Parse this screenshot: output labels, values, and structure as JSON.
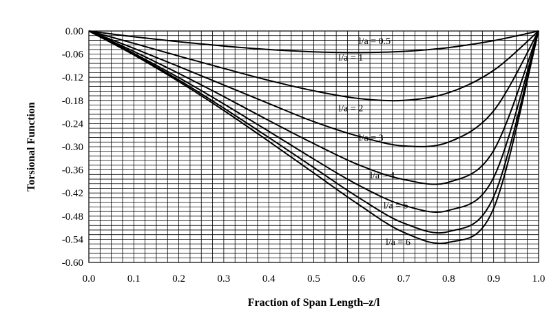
{
  "chart_data": {
    "type": "line",
    "title": "",
    "xlabel": "Fraction of Span Length–z/l",
    "ylabel": "Torsional Function",
    "xlim": [
      0.0,
      1.0
    ],
    "ylim": [
      -0.6,
      0.0
    ],
    "x_ticks": [
      "0.0",
      "0.1",
      "0.2",
      "0.3",
      "0.4",
      "0.5",
      "0.6",
      "0.7",
      "0.8",
      "0.9",
      "1.0"
    ],
    "y_ticks": [
      "0.00",
      "-0.06",
      "-0.12",
      "-0.18",
      "-0.24",
      "-0.30",
      "-0.36",
      "-0.42",
      "-0.48",
      "-0.54",
      "-0.60"
    ],
    "grid": true,
    "minor_grid_divisions": {
      "x": 4,
      "y": 5
    },
    "x": [
      0.0,
      0.1,
      0.2,
      0.3,
      0.4,
      0.5,
      0.6,
      0.7,
      0.8,
      0.9,
      1.0
    ],
    "series": [
      {
        "name": "l/a = 0.5",
        "values": [
          0.0,
          -0.015,
          -0.028,
          -0.039,
          -0.048,
          -0.054,
          -0.056,
          -0.053,
          -0.043,
          -0.025,
          0.0
        ]
      },
      {
        "name": "l/a = 1",
        "values": [
          0.0,
          -0.032,
          -0.065,
          -0.097,
          -0.128,
          -0.155,
          -0.175,
          -0.18,
          -0.16,
          -0.102,
          0.0
        ]
      },
      {
        "name": "l/a = 2",
        "values": [
          0.0,
          -0.045,
          -0.092,
          -0.14,
          -0.188,
          -0.235,
          -0.273,
          -0.298,
          -0.288,
          -0.207,
          0.0
        ]
      },
      {
        "name": "l/a = 3",
        "values": [
          0.0,
          -0.053,
          -0.11,
          -0.17,
          -0.232,
          -0.292,
          -0.347,
          -0.385,
          -0.392,
          -0.31,
          0.0
        ]
      },
      {
        "name": "l/a = 4",
        "values": [
          0.0,
          -0.058,
          -0.121,
          -0.189,
          -0.26,
          -0.332,
          -0.4,
          -0.452,
          -0.465,
          -0.38,
          0.0
        ]
      },
      {
        "name": "l/a = 5",
        "values": [
          0.0,
          -0.061,
          -0.127,
          -0.2,
          -0.276,
          -0.354,
          -0.432,
          -0.498,
          -0.52,
          -0.43,
          0.0
        ]
      },
      {
        "name": "l/a = 6",
        "values": [
          0.0,
          -0.062,
          -0.131,
          -0.206,
          -0.286,
          -0.368,
          -0.45,
          -0.522,
          -0.548,
          -0.46,
          0.0
        ]
      }
    ],
    "curve_labels": [
      {
        "text": "l/a = 0.5",
        "x": 0.6,
        "y": -0.034
      },
      {
        "text": "l/a = 1",
        "x": 0.555,
        "y": -0.077
      },
      {
        "text": "l/a = 2",
        "x": 0.555,
        "y": -0.208
      },
      {
        "text": "l/a = 3",
        "x": 0.6,
        "y": -0.285
      },
      {
        "text": "l/a = 4",
        "x": 0.625,
        "y": -0.382
      },
      {
        "text": "l/a = 5",
        "x": 0.655,
        "y": -0.46
      },
      {
        "text": "l/a = 6",
        "x": 0.66,
        "y": -0.555
      }
    ]
  }
}
